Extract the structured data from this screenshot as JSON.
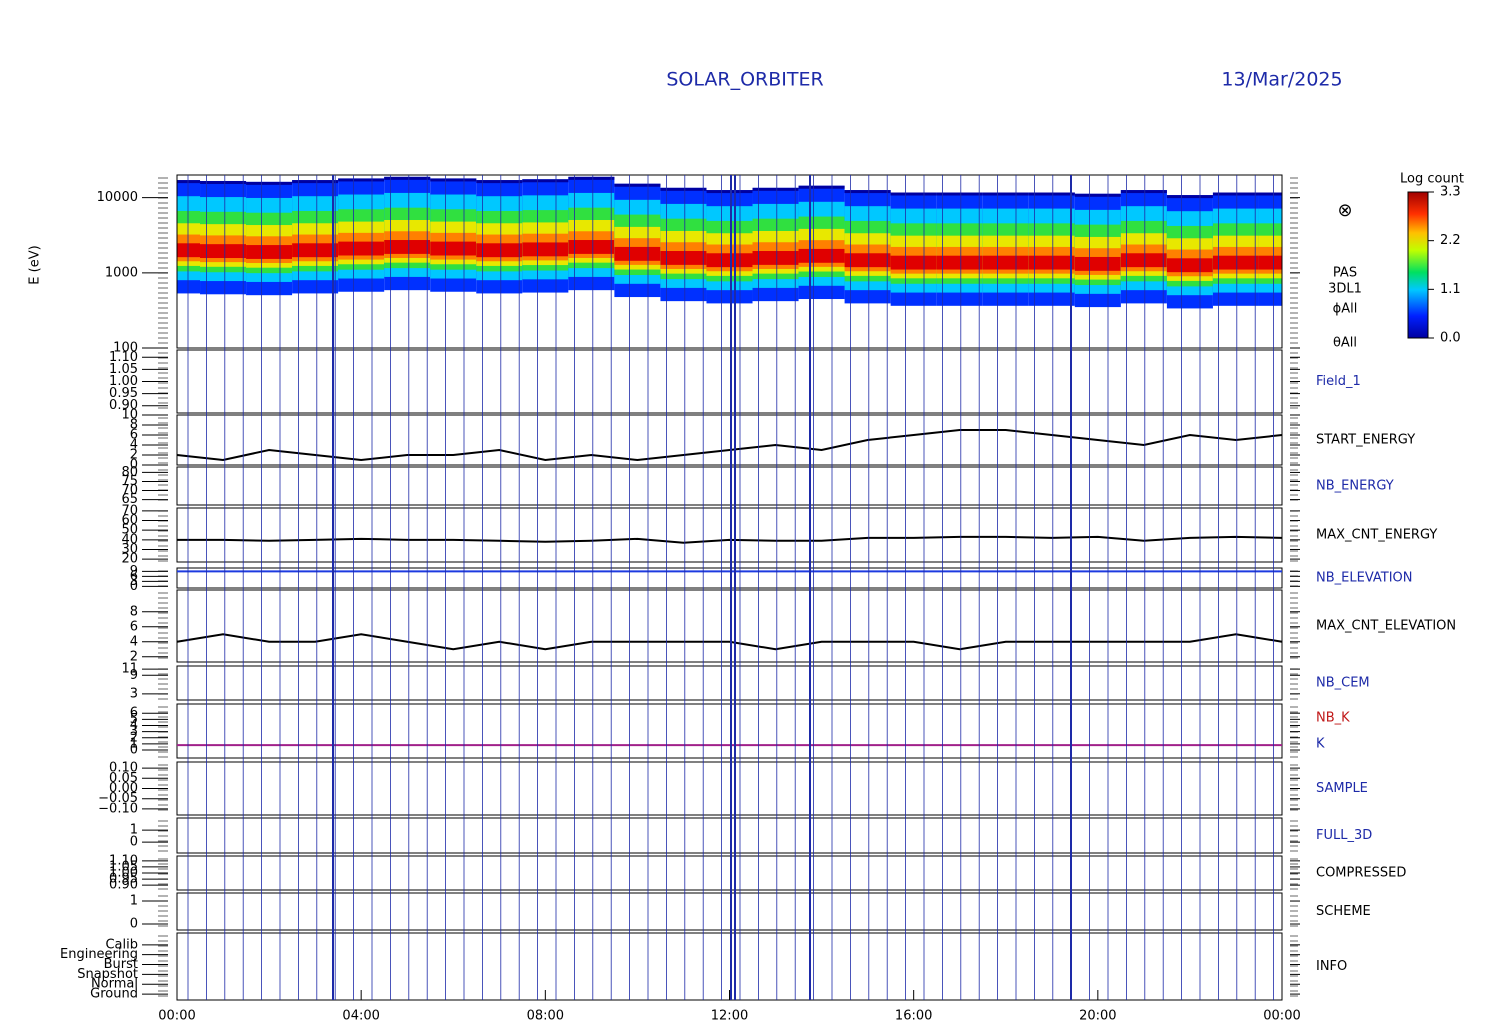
{
  "title": "SOLAR_ORBITER",
  "date": "13/Mar/2025",
  "time_axis": {
    "xlim": [
      0,
      24
    ],
    "xticks": [
      {
        "value": 0,
        "label": "00:00"
      },
      {
        "value": 4,
        "label": "04:00"
      },
      {
        "value": 8,
        "label": "08:00"
      },
      {
        "value": 12,
        "label": "12:00"
      },
      {
        "value": 16,
        "label": "16:00"
      },
      {
        "value": 20,
        "label": "20:00"
      },
      {
        "value": 24,
        "label": "00:00"
      }
    ]
  },
  "colorbar": {
    "title": "Log count",
    "clim": [
      0,
      3.3
    ],
    "ticks": [
      {
        "value": 0,
        "label": "0.0"
      },
      {
        "value": 1.1,
        "label": "1.1"
      },
      {
        "value": 2.2,
        "label": "2.2"
      },
      {
        "value": 3.3,
        "label": "3.3"
      }
    ]
  },
  "chart_data": [
    {
      "type": "spectrogram",
      "ylabel": "E (eV)",
      "log_scale": true,
      "labels": [
        "PAS",
        "3DL1",
        "ϕAll",
        "θAll"
      ],
      "label_color": "#000",
      "ylim": [
        100,
        20000
      ],
      "yticks": [
        100,
        1000,
        10000
      ],
      "x": [
        0,
        1,
        2,
        3,
        4,
        5,
        6,
        7,
        8,
        9,
        10,
        11,
        12,
        13,
        14,
        15,
        16,
        17,
        18,
        19,
        20,
        21,
        22,
        23,
        24
      ],
      "values": [
        1900,
        1850,
        1800,
        1900,
        2000,
        2100,
        2000,
        1900,
        1950,
        2100,
        1700,
        1500,
        1400,
        1500,
        1600,
        1400,
        1300,
        1300,
        1300,
        1300,
        1250,
        1400,
        1200,
        1300,
        1300
      ]
    },
    {
      "type": "empty",
      "labels": [
        "Field_1"
      ],
      "label_color": "#1d2aa8",
      "ylim": [
        0.87,
        1.13
      ],
      "yticks": [
        {
          "value": 0.9,
          "label": "0.90"
        },
        {
          "value": 0.95,
          "label": "0.95"
        },
        {
          "value": 1.0,
          "label": "1.00"
        },
        {
          "value": 1.05,
          "label": "1.05"
        },
        {
          "value": 1.1,
          "label": "1.10"
        }
      ]
    },
    {
      "type": "line",
      "labels": [
        "START_ENERGY"
      ],
      "label_color": "#000",
      "color": "#000",
      "ylim": [
        0,
        10
      ],
      "yticks": [
        0,
        2,
        4,
        6,
        8,
        10
      ],
      "x": [
        0,
        1,
        2,
        3,
        4,
        5,
        6,
        7,
        8,
        9,
        10,
        11,
        12,
        13,
        14,
        15,
        16,
        17,
        18,
        19,
        20,
        21,
        22,
        23,
        24
      ],
      "values": [
        2,
        1,
        3,
        2,
        1,
        2,
        2,
        3,
        1,
        2,
        1,
        2,
        3,
        4,
        3,
        5,
        6,
        7,
        7,
        6,
        5,
        4,
        6,
        5,
        6
      ]
    },
    {
      "type": "empty",
      "labels": [
        "NB_ENERGY"
      ],
      "label_color": "#1d2aa8",
      "ylim": [
        62,
        83
      ],
      "yticks": [
        65,
        70,
        75,
        80
      ]
    },
    {
      "type": "line",
      "labels": [
        "MAX_CNT_ENERGY"
      ],
      "label_color": "#000",
      "color": "#000",
      "ylim": [
        17,
        73
      ],
      "yticks": [
        20,
        30,
        40,
        50,
        60,
        70
      ],
      "x": [
        0,
        1,
        2,
        3,
        4,
        5,
        6,
        7,
        8,
        9,
        10,
        11,
        12,
        13,
        14,
        15,
        16,
        17,
        18,
        19,
        20,
        21,
        22,
        23,
        24
      ],
      "values": [
        40,
        40,
        39,
        40,
        41,
        40,
        40,
        39,
        38,
        39,
        41,
        37,
        40,
        39,
        39,
        42,
        42,
        43,
        43,
        42,
        43,
        39,
        42,
        43,
        42
      ]
    },
    {
      "type": "line",
      "labels": [
        "NB_ELEVATION"
      ],
      "label_color": "#1d2aa8",
      "color": "#1d3ae0",
      "ylim": [
        -1,
        11
      ],
      "yticks": [
        0,
        3,
        6,
        9
      ],
      "x": [
        0,
        1,
        2,
        3,
        4,
        5,
        6,
        7,
        8,
        9,
        10,
        11,
        12,
        13,
        14,
        15,
        16,
        17,
        18,
        19,
        20,
        21,
        22,
        23,
        24
      ],
      "values": [
        9,
        9,
        9,
        9,
        9,
        9,
        9,
        9,
        9,
        9,
        9,
        9,
        9,
        9,
        9,
        9,
        9,
        9,
        9,
        9,
        9,
        9,
        9,
        9,
        9
      ]
    },
    {
      "type": "line",
      "labels": [
        "MAX_CNT_ELEVATION"
      ],
      "label_color": "#000",
      "color": "#000",
      "ylim": [
        1.3,
        10.9
      ],
      "yticks": [
        2,
        4,
        6,
        8
      ],
      "x": [
        0,
        1,
        2,
        3,
        4,
        5,
        6,
        7,
        8,
        9,
        10,
        11,
        12,
        13,
        14,
        15,
        16,
        17,
        18,
        19,
        20,
        21,
        22,
        23,
        24
      ],
      "values": [
        4,
        5,
        4,
        4,
        5,
        4,
        3,
        4,
        3,
        4,
        4,
        4,
        4,
        3,
        4,
        4,
        4,
        3,
        4,
        4,
        4,
        4,
        4,
        5,
        4
      ]
    },
    {
      "type": "empty",
      "labels": [
        "NB_CEM"
      ],
      "label_color": "#1d2aa8",
      "ylim": [
        1,
        12
      ],
      "yticks": [
        3,
        9,
        11
      ]
    },
    {
      "type": "line",
      "labels": [
        "NB_K",
        "K"
      ],
      "label_colors": [
        "#c01818",
        "#1d2aa8"
      ],
      "color": "#a0208a",
      "ylim": [
        -1.3,
        7.5
      ],
      "yticks": [
        0,
        1,
        2,
        3,
        4,
        5,
        6
      ],
      "x": [
        0,
        24
      ],
      "values": [
        0.8,
        0.8
      ]
    },
    {
      "type": "empty",
      "labels": [
        "SAMPLE"
      ],
      "label_color": "#1d2aa8",
      "ylim": [
        -0.13,
        0.13
      ],
      "yticks": [
        {
          "value": -0.1,
          "label": "−0.10"
        },
        {
          "value": -0.05,
          "label": "−0.05"
        },
        {
          "value": 0,
          "label": "0.00"
        },
        {
          "value": 0.05,
          "label": "0.05"
        },
        {
          "value": 0.1,
          "label": "0.10"
        }
      ]
    },
    {
      "type": "empty",
      "labels": [
        "FULL_3D"
      ],
      "label_color": "#1d2aa8",
      "ylim": [
        -0.9,
        2
      ],
      "yticks": [
        0,
        1
      ]
    },
    {
      "type": "empty",
      "labels": [
        "COMPRESSED"
      ],
      "label_color": "#000",
      "ylim": [
        0.86,
        1.14
      ],
      "yticks": [
        {
          "value": 0.9,
          "label": "0.90"
        },
        {
          "value": 0.95,
          "label": "0.95"
        },
        {
          "value": 1.0,
          "label": "1.00"
        },
        {
          "value": 1.05,
          "label": "1.05"
        },
        {
          "value": 1.1,
          "label": "1.10"
        }
      ]
    },
    {
      "type": "empty",
      "labels": [
        "SCHEME"
      ],
      "label_color": "#000",
      "ylim": [
        -0.26,
        1.35
      ],
      "yticks": [
        0,
        1
      ]
    },
    {
      "type": "empty",
      "labels": [
        "INFO"
      ],
      "label_color": "#000",
      "ylim": [
        -0.6,
        6.2
      ],
      "yticks": [
        {
          "value": 0,
          "label": "Ground"
        },
        {
          "value": 1,
          "label": "Normal"
        },
        {
          "value": 2,
          "label": "Snapshot"
        },
        {
          "value": 3,
          "label": "Burst"
        },
        {
          "value": 4,
          "label": "Engineering"
        },
        {
          "value": 5,
          "label": "Calib"
        }
      ]
    }
  ]
}
